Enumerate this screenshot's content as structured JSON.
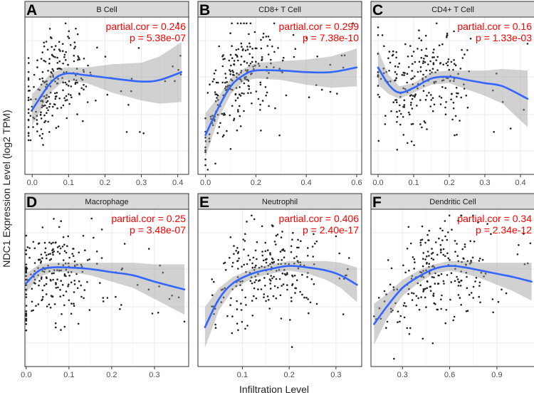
{
  "figure": {
    "ylabel": "NDC1 Expression Level (log2 TPM)",
    "xlabel": "Infiltration Level"
  },
  "chart_data": [
    {
      "type": "scatter",
      "letter": "A",
      "title": "B Cell",
      "stat_cor": "partial.cor = 0.246",
      "stat_p": "p = 5.38e-07",
      "xlim": [
        -0.02,
        0.43
      ],
      "ylim": [
        0,
        10
      ],
      "xticks": [
        0.0,
        0.1,
        0.2,
        0.3,
        0.4
      ],
      "xtick_labels": [
        "0.0",
        "0.1",
        "0.2",
        "0.3",
        "0.4"
      ],
      "trend": {
        "x": [
          0.0,
          0.05,
          0.09,
          0.15,
          0.22,
          0.3,
          0.35,
          0.41
        ],
        "y": [
          4.1,
          5.8,
          6.4,
          6.3,
          6.1,
          5.9,
          6.0,
          6.5
        ],
        "band": [
          1.0,
          0.6,
          0.4,
          0.5,
          0.9,
          1.2,
          1.5,
          1.9
        ]
      },
      "points": {
        "n": 240,
        "seed": 11,
        "center": 0.06,
        "spread": 0.05,
        "xmin": -0.01,
        "xmax": 0.41,
        "noise": 1.5
      }
    },
    {
      "type": "scatter",
      "letter": "B",
      "title": "CD8+ T Cell",
      "stat_cor": "partial.cor = 0.299",
      "stat_p": "p = 7.38e-10",
      "xlim": [
        -0.03,
        0.62
      ],
      "ylim": [
        0,
        10
      ],
      "xticks": [
        0.0,
        0.2,
        0.4,
        0.6
      ],
      "xtick_labels": [
        "0.0",
        "0.2",
        "0.4",
        "0.6"
      ],
      "trend": {
        "x": [
          0.0,
          0.05,
          0.1,
          0.15,
          0.2,
          0.3,
          0.4,
          0.5,
          0.6
        ],
        "y": [
          2.5,
          4.2,
          5.6,
          6.3,
          6.6,
          6.6,
          6.5,
          6.5,
          6.8
        ],
        "band": [
          1.4,
          0.7,
          0.5,
          0.4,
          0.5,
          0.6,
          0.8,
          1.0,
          1.2
        ]
      },
      "points": {
        "n": 240,
        "seed": 22,
        "center": 0.14,
        "spread": 0.08,
        "xmin": 0.0,
        "xmax": 0.6,
        "noise": 1.5
      }
    },
    {
      "type": "scatter",
      "letter": "C",
      "title": "CD4+ T Cell",
      "stat_cor": "partial.cor = 0.16",
      "stat_p": "p = 1.33e-03",
      "xlim": [
        -0.02,
        0.44
      ],
      "ylim": [
        0,
        10
      ],
      "xticks": [
        0.0,
        0.1,
        0.2,
        0.3,
        0.4
      ],
      "xtick_labels": [
        "0.0",
        "0.1",
        "0.2",
        "0.3",
        "0.4"
      ],
      "trend": {
        "x": [
          0.0,
          0.03,
          0.06,
          0.1,
          0.15,
          0.2,
          0.25,
          0.3,
          0.35,
          0.42
        ],
        "y": [
          6.8,
          5.7,
          5.2,
          5.5,
          6.1,
          6.2,
          6.0,
          5.8,
          5.6,
          4.8
        ],
        "band": [
          1.1,
          0.6,
          0.4,
          0.3,
          0.4,
          0.4,
          0.6,
          0.8,
          1.1,
          1.8
        ]
      },
      "points": {
        "n": 240,
        "seed": 33,
        "center": 0.12,
        "spread": 0.07,
        "xmin": 0.0,
        "xmax": 0.42,
        "noise": 1.5
      }
    },
    {
      "type": "scatter",
      "letter": "D",
      "title": "Macrophage",
      "stat_cor": "partial.cor = 0.25",
      "stat_p": "p = 3.48e-07",
      "xlim": [
        -0.003,
        0.38
      ],
      "ylim": [
        0,
        10
      ],
      "xticks": [
        0.0,
        0.1,
        0.2,
        0.3
      ],
      "xtick_labels": [
        "0.0",
        "0.1",
        "0.2",
        "0.3"
      ],
      "trend": {
        "x": [
          0.0,
          0.03,
          0.06,
          0.1,
          0.15,
          0.2,
          0.25,
          0.3,
          0.37
        ],
        "y": [
          5.3,
          6.1,
          6.3,
          6.3,
          6.2,
          6.0,
          5.8,
          5.4,
          4.9
        ],
        "band": [
          0.6,
          0.4,
          0.3,
          0.3,
          0.4,
          0.6,
          0.8,
          1.1,
          1.6
        ]
      },
      "points": {
        "n": 240,
        "seed": 44,
        "center": 0.06,
        "spread": 0.06,
        "xmin": 0.0,
        "xmax": 0.37,
        "noise": 1.5
      }
    },
    {
      "type": "scatter",
      "letter": "E",
      "title": "Neutrophil",
      "stat_cor": "partial.cor = 0.406",
      "stat_p": "p = 2.40e-17",
      "xlim": [
        0.005,
        0.355
      ],
      "ylim": [
        0,
        10
      ],
      "xticks": [
        0.1,
        0.2,
        0.3
      ],
      "xtick_labels": [
        "0.1",
        "0.2",
        "0.3"
      ],
      "trend": {
        "x": [
          0.02,
          0.05,
          0.08,
          0.12,
          0.16,
          0.2,
          0.24,
          0.28,
          0.31,
          0.345
        ],
        "y": [
          2.5,
          4.3,
          5.3,
          5.9,
          6.2,
          6.4,
          6.3,
          6.1,
          5.8,
          5.2
        ],
        "band": [
          1.3,
          0.7,
          0.4,
          0.3,
          0.3,
          0.3,
          0.4,
          0.6,
          0.8,
          1.1
        ]
      },
      "points": {
        "n": 240,
        "seed": 55,
        "center": 0.16,
        "spread": 0.06,
        "xmin": 0.02,
        "xmax": 0.345,
        "noise": 1.5
      }
    },
    {
      "type": "scatter",
      "letter": "F",
      "title": "Dendritic Cell",
      "stat_cor": "partial.cor = 0.34",
      "stat_p": "p = 2.34e-12",
      "xlim": [
        0.1,
        1.14
      ],
      "ylim": [
        0,
        10
      ],
      "xticks": [
        0.3,
        0.6,
        0.9
      ],
      "xtick_labels": [
        "0.3",
        "0.6",
        "0.9"
      ],
      "trend": {
        "x": [
          0.12,
          0.2,
          0.3,
          0.4,
          0.5,
          0.6,
          0.7,
          0.8,
          0.9,
          1.0,
          1.12
        ],
        "y": [
          2.7,
          3.8,
          5.0,
          5.7,
          6.2,
          6.4,
          6.3,
          6.1,
          5.9,
          5.7,
          5.4
        ],
        "band": [
          1.3,
          0.8,
          0.5,
          0.4,
          0.3,
          0.3,
          0.4,
          0.5,
          0.7,
          0.9,
          1.2
        ]
      },
      "points": {
        "n": 240,
        "seed": 66,
        "center": 0.5,
        "spread": 0.17,
        "xmin": 0.12,
        "xmax": 1.12,
        "noise": 1.5
      }
    }
  ],
  "colors": {
    "points": "#222222",
    "trend": "#3366ff",
    "band": "#999999",
    "stats": "#ff0000",
    "strip": "#d9d9d9",
    "grid": "#ebebeb",
    "frame": "#333333"
  }
}
